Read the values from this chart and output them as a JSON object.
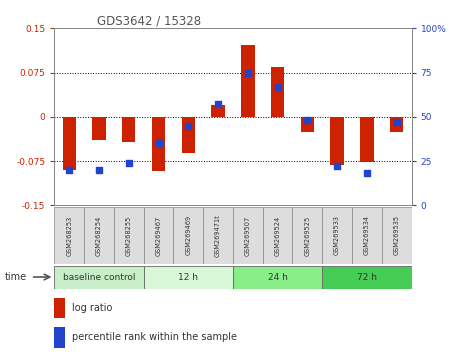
{
  "title": "GDS3642 / 15328",
  "samples": [
    "GSM268253",
    "GSM268254",
    "GSM268255",
    "GSM269467",
    "GSM269469",
    "GSM269471t",
    "GSM269507",
    "GSM269524",
    "GSM269525",
    "GSM269533",
    "GSM269534",
    "GSM269535"
  ],
  "log_ratio": [
    -0.09,
    -0.04,
    -0.042,
    -0.092,
    -0.062,
    0.02,
    0.122,
    0.085,
    -0.025,
    -0.082,
    -0.076,
    -0.025
  ],
  "percentile_rank": [
    20,
    20,
    24,
    35,
    45,
    57,
    75,
    67,
    48,
    22,
    18,
    47
  ],
  "ylim": [
    -0.15,
    0.15
  ],
  "y2lim": [
    0,
    100
  ],
  "yticks": [
    -0.15,
    -0.075,
    0,
    0.075,
    0.15
  ],
  "ytick_labels": [
    "-0.15",
    "-0.075",
    "0",
    "0.075",
    "0.15"
  ],
  "y2ticks": [
    0,
    25,
    50,
    75,
    100
  ],
  "y2tick_labels": [
    "0",
    "25",
    "50",
    "75",
    "100%"
  ],
  "dotted_lines": [
    -0.075,
    0,
    0.075
  ],
  "bar_color": "#cc2200",
  "square_color": "#2244cc",
  "groups": [
    {
      "label": "baseline control",
      "start": 0,
      "end": 3,
      "color": "#c8eec8"
    },
    {
      "label": "12 h",
      "start": 3,
      "end": 6,
      "color": "#d8f8d8"
    },
    {
      "label": "24 h",
      "start": 6,
      "end": 9,
      "color": "#88ee88"
    },
    {
      "label": "72 h",
      "start": 9,
      "end": 12,
      "color": "#44cc55"
    }
  ],
  "time_label": "time",
  "legend_log_ratio": "log ratio",
  "legend_percentile": "percentile rank within the sample",
  "bar_width": 0.45,
  "square_size": 25,
  "bg_color": "#ffffff",
  "plot_bg": "#ffffff",
  "title_color": "#555555",
  "tick_color_left": "#cc2200",
  "tick_color_right": "#2244cc"
}
